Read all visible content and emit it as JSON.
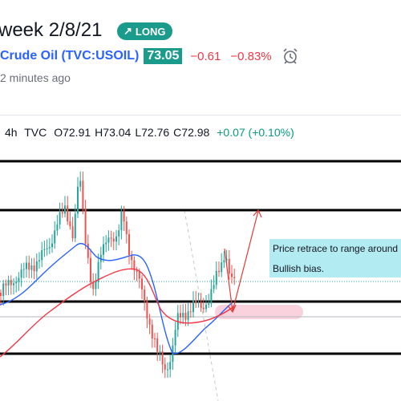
{
  "idea": {
    "title": "week 2/8/21",
    "badge": "LONG",
    "symbol": "Crude Oil (TVC:USOIL)",
    "price": "73.05",
    "change": "−0.61",
    "change_pct": "−0.83%",
    "time_ago": "2 minutes ago"
  },
  "legend": {
    "interval": "4h",
    "source": "TVC",
    "open_label": "O",
    "open": "72.91",
    "high_label": "H",
    "high": "73.04",
    "low_label": "L",
    "low": "72.76",
    "close_label": "C",
    "close": "72.98",
    "change": "+0.07 (+0.10%)"
  },
  "note": {
    "line1": "Price retrace to range around",
    "line2": "Bullish bias."
  },
  "colors": {
    "long": "#1a9b8b",
    "negative": "#f23645",
    "positive": "#089981",
    "symbol_link": "#2962ff",
    "note_bg": "#b2ebf2"
  },
  "icons": [
    "trend-up-arrow-icon",
    "alarm-clock-icon"
  ]
}
